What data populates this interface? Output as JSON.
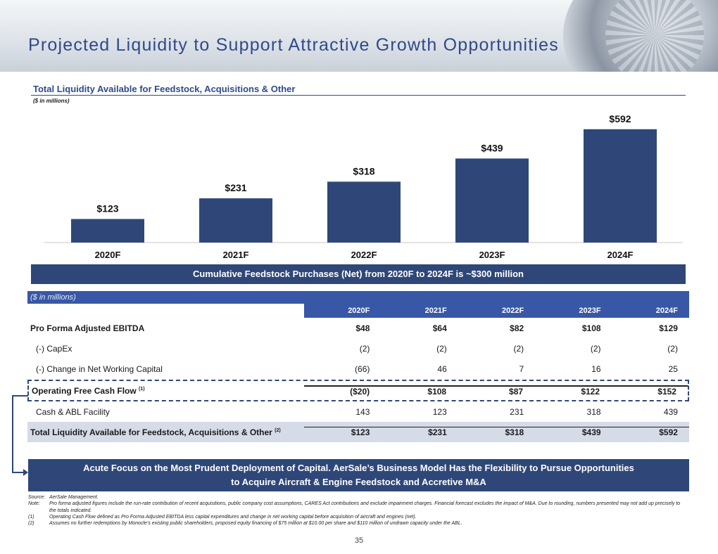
{
  "page": {
    "title": "Projected Liquidity to Support Attractive Growth Opportunities",
    "page_number": "35"
  },
  "chart": {
    "title": "Total Liquidity Available for Feedstock, Acquisitions & Other",
    "units": "($ in millions)"
  },
  "chart_data": {
    "type": "bar",
    "title": "Total Liquidity Available for Feedstock, Acquisitions & Other",
    "categories": [
      "2020F",
      "2021F",
      "2022F",
      "2023F",
      "2024F"
    ],
    "values": [
      123,
      231,
      318,
      439,
      592
    ],
    "value_labels": [
      "$123",
      "$231",
      "$318",
      "$439",
      "$592"
    ],
    "ylim": [
      0,
      650
    ],
    "bar_color": "#2f4778",
    "grid": false
  },
  "banner_top": "Cumulative Feedstock Purchases (Net) from 2020F to 2024F is ~$300 million",
  "table": {
    "units": "($ in millions)",
    "years": [
      "2020F",
      "2021F",
      "2022F",
      "2023F",
      "2024F"
    ],
    "rows": [
      {
        "label": "Pro Forma Adjusted EBITDA",
        "sup": "",
        "values": [
          "$48",
          "$64",
          "$82",
          "$108",
          "$129"
        ]
      },
      {
        "label": "(-) CapEx",
        "sup": "",
        "values": [
          "(2)",
          "(2)",
          "(2)",
          "(2)",
          "(2)"
        ]
      },
      {
        "label": "(-) Change in Net Working Capital",
        "sup": "",
        "values": [
          "(66)",
          "46",
          "7",
          "16",
          "25"
        ]
      },
      {
        "label": "Operating Free Cash Flow",
        "sup": "(1)",
        "values": [
          "($20)",
          "$108",
          "$87",
          "$122",
          "$152"
        ]
      },
      {
        "label": "Cash & ABL Facility",
        "sup": "",
        "values": [
          "143",
          "123",
          "231",
          "318",
          "439"
        ]
      },
      {
        "label": "Total Liquidity Available for Feedstock, Acquisitions & Other",
        "sup": "(2)",
        "values": [
          "$123",
          "$231",
          "$318",
          "$439",
          "$592"
        ]
      }
    ]
  },
  "banner_bottom": {
    "line1": "Acute Focus on the Most Prudent Deployment of Capital. AerSale’s Business Model Has the Flexibility to Pursue Opportunities",
    "line2": "to Acquire Aircraft & Engine Feedstock and Accretive M&A"
  },
  "notes": [
    {
      "key": "Source:",
      "text": "AerSale Management."
    },
    {
      "key": "Note:",
      "text": "Pro forma adjusted figures include the run-rate contribution of recent acquisitions, public company cost assumptions, CARES Act contributions and exclude impairment charges. Financial forecast excludes the impact of M&A. Due to rounding, numbers presented may not add up precisely to the totals indicated."
    },
    {
      "key": "(1)",
      "text": "Operating Cash Flow defined as Pro Forma Adjusted EBITDA less capital expenditures and change in net working capital before acquisition of aircraft and engines (net)."
    },
    {
      "key": "(2)",
      "text": "Assumes no further redemptions by Monocle’s existing public shareholders, proposed equity financing of $75 million at $10.00 per share and $110 million of undrawn capacity under the ABL."
    }
  ]
}
